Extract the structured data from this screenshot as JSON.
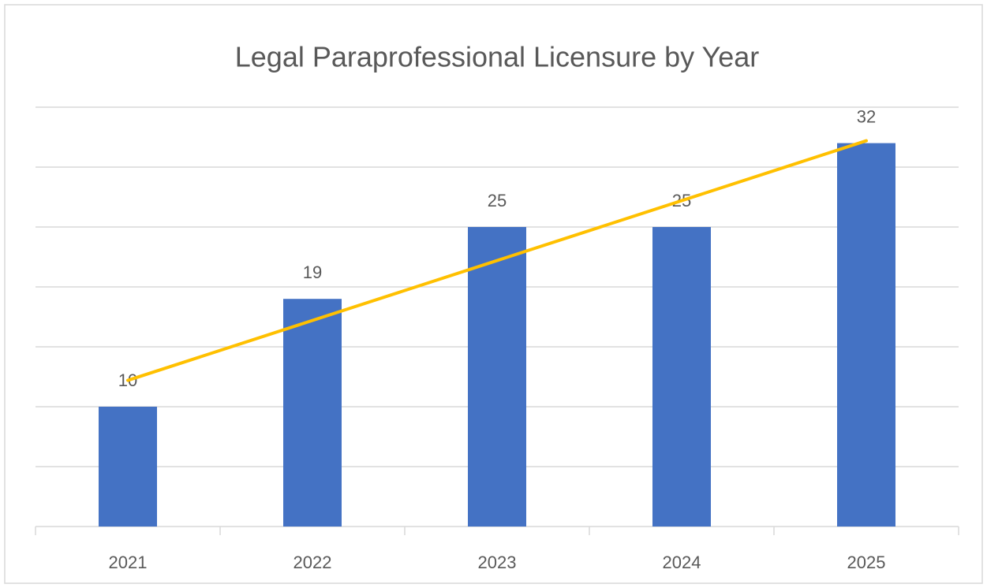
{
  "chart_data": {
    "type": "bar",
    "title": "Legal Paraprofessional Licensure by Year",
    "categories": [
      "2021",
      "2022",
      "2023",
      "2024",
      "2025"
    ],
    "values": [
      10,
      19,
      25,
      25,
      32
    ],
    "color": "#4472c4",
    "ylim": [
      0,
      35
    ],
    "yticks": [
      0,
      5,
      10,
      15,
      20,
      25,
      30,
      35
    ],
    "grid": true,
    "trendline": {
      "type": "linear",
      "color": "#ffc000"
    }
  }
}
